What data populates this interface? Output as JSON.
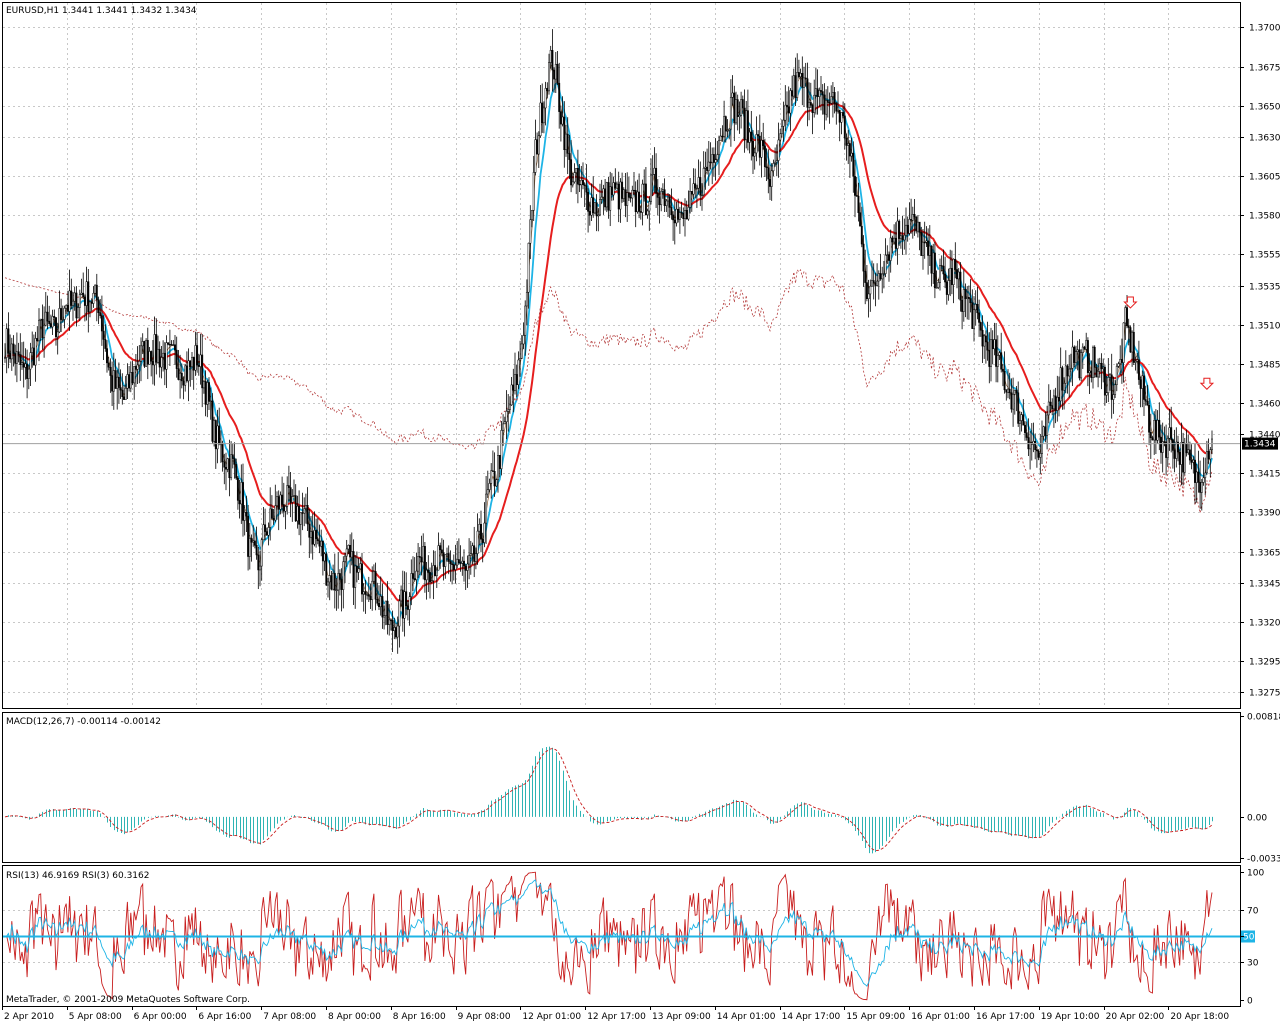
{
  "chart_data": [
    {
      "type": "candlestick",
      "symbol_header": "EURUSD,H1  1.3441 1.3441 1.3432 1.3434",
      "current_price": "1.3434",
      "price_ticks": [
        "1.3700",
        "1.3675",
        "1.3650",
        "1.3630",
        "1.3605",
        "1.3580",
        "1.3555",
        "1.3535",
        "1.3510",
        "1.3485",
        "1.3460",
        "1.3440",
        "1.3415",
        "1.3390",
        "1.3365",
        "1.3345",
        "1.3320",
        "1.3295",
        "1.3275"
      ],
      "ylim": [
        1.3265,
        1.3715
      ],
      "x_labels": [
        "2 Apr 2010",
        "5 Apr 08:00",
        "6 Apr 00:00",
        "6 Apr 16:00",
        "7 Apr 08:00",
        "8 Apr 00:00",
        "8 Apr 16:00",
        "9 Apr 08:00",
        "12 Apr 01:00",
        "12 Apr 17:00",
        "13 Apr 09:00",
        "14 Apr 01:00",
        "14 Apr 17:00",
        "15 Apr 09:00",
        "16 Apr 01:00",
        "16 Apr 17:00",
        "19 Apr 10:00",
        "20 Apr 02:00",
        "20 Apr 18:00"
      ],
      "close_path": [
        [
          0,
          1.35
        ],
        [
          12,
          1.3478
        ],
        [
          22,
          1.351
        ],
        [
          30,
          1.3505
        ],
        [
          35,
          1.3525
        ],
        [
          40,
          1.352
        ],
        [
          45,
          1.353
        ],
        [
          55,
          1.3525
        ],
        [
          62,
          1.3475
        ],
        [
          70,
          1.3462
        ],
        [
          78,
          1.3488
        ],
        [
          85,
          1.3495
        ],
        [
          92,
          1.349
        ],
        [
          100,
          1.3488
        ],
        [
          107,
          1.348
        ],
        [
          113,
          1.349
        ],
        [
          118,
          1.347
        ],
        [
          123,
          1.344
        ],
        [
          129,
          1.3425
        ],
        [
          134,
          1.342
        ],
        [
          139,
          1.34
        ],
        [
          144,
          1.3365
        ],
        [
          149,
          1.3355
        ],
        [
          153,
          1.338
        ],
        [
          157,
          1.3385
        ],
        [
          160,
          1.3395
        ],
        [
          165,
          1.3398
        ],
        [
          169,
          1.3392
        ],
        [
          174,
          1.339
        ],
        [
          178,
          1.3383
        ],
        [
          182,
          1.3375
        ],
        [
          186,
          1.3366
        ],
        [
          190,
          1.335
        ],
        [
          194,
          1.3345
        ],
        [
          198,
          1.335
        ],
        [
          202,
          1.336
        ],
        [
          206,
          1.335
        ],
        [
          210,
          1.3348
        ],
        [
          215,
          1.3345
        ],
        [
          219,
          1.334
        ],
        [
          223,
          1.3325
        ],
        [
          227,
          1.3315
        ],
        [
          230,
          1.332
        ],
        [
          233,
          1.333
        ],
        [
          236,
          1.333
        ],
        [
          240,
          1.3355
        ],
        [
          244,
          1.336
        ],
        [
          248,
          1.3355
        ],
        [
          252,
          1.3358
        ],
        [
          256,
          1.336
        ],
        [
          261,
          1.3352
        ],
        [
          266,
          1.336
        ],
        [
          271,
          1.335
        ],
        [
          276,
          1.336
        ],
        [
          281,
          1.338
        ],
        [
          284,
          1.34
        ],
        [
          287,
          1.341
        ],
        [
          290,
          1.342
        ],
        [
          293,
          1.344
        ],
        [
          297,
          1.346
        ],
        [
          300,
          1.347
        ],
        [
          303,
          1.349
        ],
        [
          306,
          1.352
        ],
        [
          309,
          1.357
        ],
        [
          312,
          1.362
        ],
        [
          316,
          1.365
        ],
        [
          319,
          1.367
        ],
        [
          322,
          1.368
        ],
        [
          325,
          1.366
        ],
        [
          328,
          1.364
        ],
        [
          332,
          1.361
        ],
        [
          336,
          1.36
        ],
        [
          340,
          1.3595
        ],
        [
          344,
          1.359
        ],
        [
          348,
          1.3585
        ],
        [
          352,
          1.359
        ],
        [
          357,
          1.3595
        ],
        [
          362,
          1.3592
        ],
        [
          367,
          1.3585
        ],
        [
          372,
          1.359
        ],
        [
          377,
          1.359
        ],
        [
          382,
          1.36
        ],
        [
          387,
          1.3595
        ],
        [
          392,
          1.359
        ],
        [
          397,
          1.3575
        ],
        [
          401,
          1.358
        ],
        [
          405,
          1.359
        ],
        [
          409,
          1.36
        ],
        [
          413,
          1.361
        ],
        [
          418,
          1.3625
        ],
        [
          423,
          1.364
        ],
        [
          428,
          1.365
        ],
        [
          433,
          1.3645
        ],
        [
          438,
          1.363
        ],
        [
          443,
          1.3625
        ],
        [
          447,
          1.3615
        ],
        [
          451,
          1.36
        ],
        [
          455,
          1.362
        ],
        [
          459,
          1.364
        ],
        [
          463,
          1.366
        ],
        [
          467,
          1.3665
        ],
        [
          471,
          1.366
        ],
        [
          476,
          1.3655
        ],
        [
          481,
          1.365
        ],
        [
          486,
          1.3655
        ],
        [
          491,
          1.3645
        ],
        [
          495,
          1.363
        ],
        [
          498,
          1.361
        ],
        [
          501,
          1.359
        ],
        [
          504,
          1.356
        ],
        [
          507,
          1.3535
        ],
        [
          510,
          1.353
        ],
        [
          514,
          1.3545
        ],
        [
          518,
          1.3555
        ],
        [
          522,
          1.3565
        ],
        [
          526,
          1.357
        ],
        [
          530,
          1.3575
        ],
        [
          534,
          1.3575
        ],
        [
          538,
          1.3565
        ],
        [
          542,
          1.3555
        ],
        [
          546,
          1.3545
        ],
        [
          550,
          1.354
        ],
        [
          554,
          1.3535
        ],
        [
          558,
          1.3545
        ],
        [
          562,
          1.353
        ],
        [
          566,
          1.3525
        ],
        [
          570,
          1.3515
        ],
        [
          574,
          1.3505
        ],
        [
          578,
          1.3495
        ],
        [
          582,
          1.349
        ],
        [
          586,
          1.348
        ],
        [
          590,
          1.347
        ],
        [
          594,
          1.3462
        ],
        [
          598,
          1.345
        ],
        [
          602,
          1.344
        ],
        [
          606,
          1.343
        ],
        [
          609,
          1.3425
        ],
        [
          612,
          1.344
        ],
        [
          615,
          1.3455
        ],
        [
          618,
          1.3465
        ],
        [
          621,
          1.3475
        ],
        [
          624,
          1.348
        ],
        [
          627,
          1.349
        ],
        [
          630,
          1.349
        ],
        [
          633,
          1.3485
        ],
        [
          636,
          1.349
        ],
        [
          640,
          1.3485
        ],
        [
          644,
          1.3478
        ],
        [
          648,
          1.3475
        ],
        [
          652,
          1.347
        ],
        [
          656,
          1.3485
        ],
        [
          659,
          1.351
        ],
        [
          662,
          1.35
        ],
        [
          665,
          1.349
        ],
        [
          668,
          1.347
        ],
        [
          671,
          1.346
        ],
        [
          674,
          1.3445
        ],
        [
          678,
          1.3438
        ],
        [
          682,
          1.3435
        ],
        [
          686,
          1.3438
        ],
        [
          690,
          1.343
        ],
        [
          694,
          1.3425
        ],
        [
          698,
          1.3418
        ],
        [
          702,
          1.341
        ],
        [
          706,
          1.3425
        ],
        [
          710,
          1.344
        ]
      ],
      "series": [
        {
          "name": "",
          "color": "#1eb4e6",
          "style": "solid",
          "period": 8
        },
        {
          "name": "",
          "color": "#e61e1e",
          "style": "solid",
          "period": 30
        },
        {
          "name": "",
          "color": "#b43c3c",
          "style": "dotted",
          "period": 200
        },
        {
          "name": "",
          "color": "#8b5a2b",
          "style": "thin",
          "period": 3
        }
      ],
      "markers": [
        {
          "type": "down-arrow",
          "price": 1.3522,
          "color": "#e61e1e"
        },
        {
          "type": "down-arrow",
          "price": 1.347,
          "color": "#e61e1e"
        }
      ]
    },
    {
      "type": "histogram",
      "header": "MACD(12,26,7) -0.00114 -0.00142",
      "ticks": [
        "0.00818",
        "0.00",
        "-0.00333"
      ],
      "ylim": [
        -0.00333,
        0.00818
      ],
      "color": "#2fb4b4",
      "signal_color": "#c81e1e"
    },
    {
      "type": "line",
      "header": "RSI(13) 46.9169  RSI(3) 60.3162",
      "ticks": [
        "100",
        "70",
        "50",
        "30",
        "0"
      ],
      "ylim": [
        0,
        100
      ],
      "level": 50,
      "level_label": "50",
      "series": [
        {
          "name": "RSI(13)",
          "color": "#1eb4e6",
          "period": 13
        },
        {
          "name": "RSI(3)",
          "color": "#c81e1e",
          "period": 3
        }
      ]
    }
  ],
  "footer": {
    "copyright": "MetaTrader, © 2001-2009 MetaQuotes Software Corp."
  }
}
